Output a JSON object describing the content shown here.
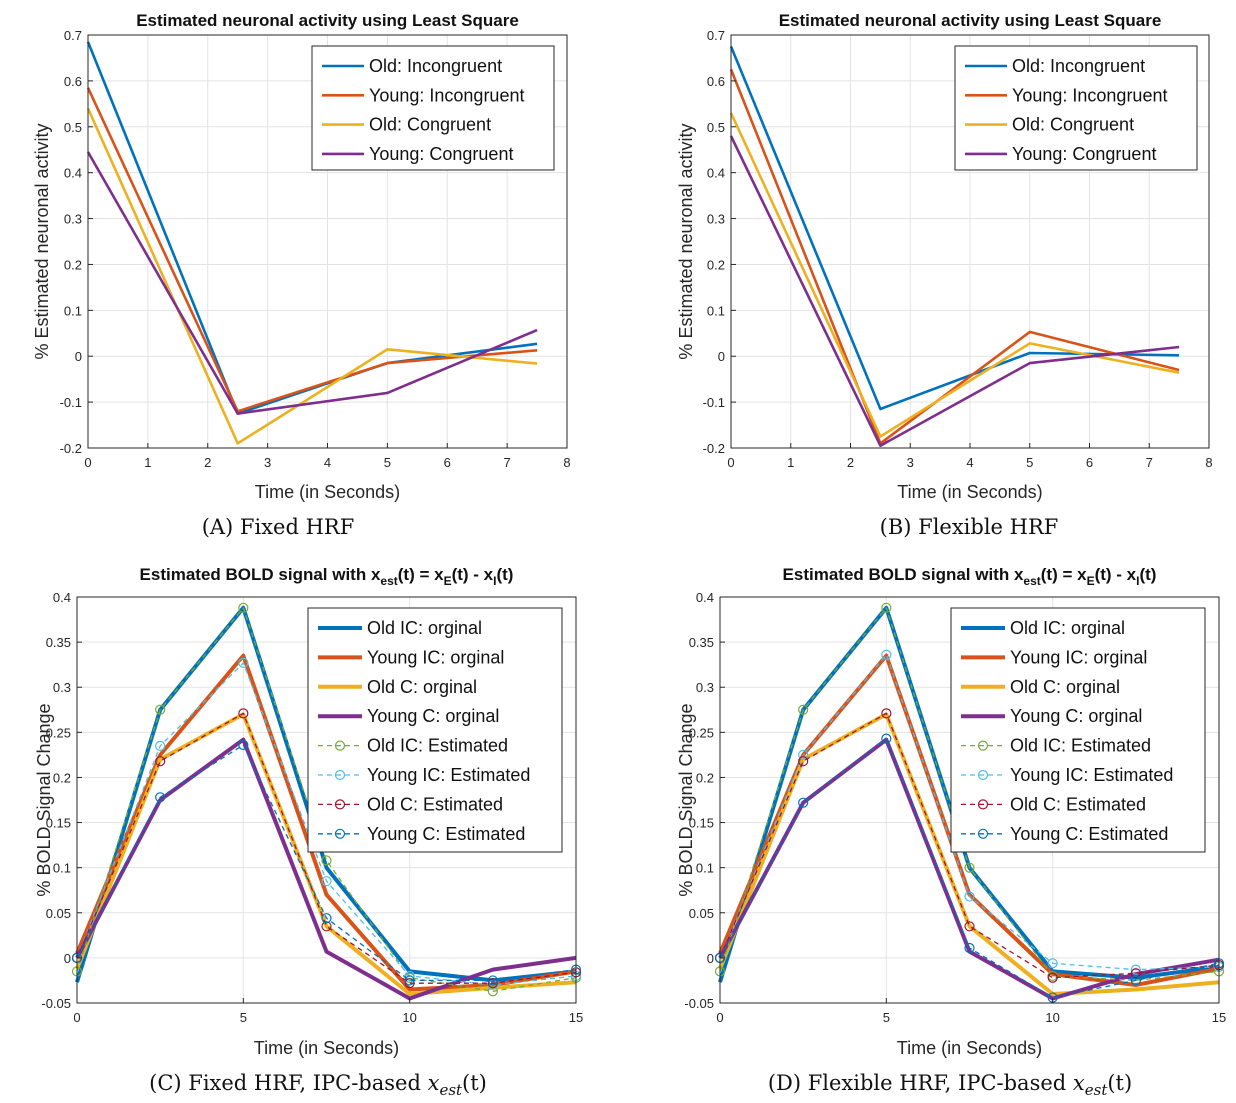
{
  "chart_data": [
    {
      "type": "line",
      "title": "Estimated neuronal activity using Least Square",
      "caption": "(A) Fixed HRF",
      "xlabel": "Time (in Seconds)",
      "ylabel": "% Estimated neuronal activity",
      "xlim": [
        0,
        8
      ],
      "ylim": [
        -0.2,
        0.7
      ],
      "xticks": [
        "0",
        "1",
        "2",
        "3",
        "4",
        "5",
        "6",
        "7",
        "8"
      ],
      "yticks": [
        "-0.2",
        "-0.1",
        "0",
        "0.1",
        "0.2",
        "0.3",
        "0.4",
        "0.5",
        "0.6",
        "0.7"
      ],
      "grid": true,
      "legend": "top-right",
      "x": [
        0,
        2.5,
        5,
        7.5
      ],
      "series": [
        {
          "name": "Old: Incongruent",
          "color": "#0072BD",
          "values": [
            0.685,
            -0.125,
            -0.015,
            0.027
          ]
        },
        {
          "name": "Young: Incongruent",
          "color": "#D95319",
          "values": [
            0.585,
            -0.12,
            -0.015,
            0.013
          ]
        },
        {
          "name": "Old: Congruent",
          "color": "#EDB120",
          "values": [
            0.54,
            -0.19,
            0.015,
            -0.016
          ]
        },
        {
          "name": "Young: Congruent",
          "color": "#7E2F8E",
          "values": [
            0.445,
            -0.125,
            -0.08,
            0.057
          ]
        }
      ]
    },
    {
      "type": "line",
      "title": "Estimated neuronal activity using Least Square",
      "caption": "(B) Flexible HRF",
      "xlabel": "Time (in Seconds)",
      "ylabel": "% Estimated neuronal activity",
      "xlim": [
        0,
        8
      ],
      "ylim": [
        -0.2,
        0.7
      ],
      "xticks": [
        "0",
        "1",
        "2",
        "3",
        "4",
        "5",
        "6",
        "7",
        "8"
      ],
      "yticks": [
        "-0.2",
        "-0.1",
        "0",
        "0.1",
        "0.2",
        "0.3",
        "0.4",
        "0.5",
        "0.6",
        "0.7"
      ],
      "grid": true,
      "legend": "top-right",
      "x": [
        0,
        2.5,
        5,
        7.5
      ],
      "series": [
        {
          "name": "Old: Incongruent",
          "color": "#0072BD",
          "values": [
            0.675,
            -0.115,
            0.007,
            0.002
          ]
        },
        {
          "name": "Young: Incongruent",
          "color": "#D95319",
          "values": [
            0.625,
            -0.19,
            0.053,
            -0.03
          ]
        },
        {
          "name": "Old: Congruent",
          "color": "#EDB120",
          "values": [
            0.53,
            -0.175,
            0.028,
            -0.036
          ]
        },
        {
          "name": "Young: Congruent",
          "color": "#7E2F8E",
          "values": [
            0.48,
            -0.195,
            -0.015,
            0.02
          ]
        }
      ]
    },
    {
      "type": "line",
      "title": "Estimated BOLD signal with x",
      "title_parts": {
        "sub_est": "est",
        "mid": "(t) = x",
        "sub_e": "E",
        "mid2": "(t) - x",
        "sub_i": "I",
        "end": "(t)"
      },
      "caption": "(C) Fixed HRF, IPC-based ",
      "caption_math": "x",
      "caption_sub": "est",
      "caption_end": "(t)",
      "xlabel": "Time (in Seconds)",
      "ylabel": "% BOLD Signal Change",
      "xlim": [
        0,
        15
      ],
      "ylim": [
        -0.05,
        0.4
      ],
      "xticks": [
        "0",
        "5",
        "10",
        "15"
      ],
      "yticks": [
        "-0.05",
        "0",
        "0.05",
        "0.1",
        "0.15",
        "0.2",
        "0.25",
        "0.3",
        "0.35",
        "0.4"
      ],
      "grid": true,
      "legend": "top-right",
      "x": [
        0,
        2.5,
        5,
        7.5,
        10,
        12.5,
        15
      ],
      "series": [
        {
          "name": "Old IC: orginal",
          "color": "#0072BD",
          "style": "solid",
          "values": [
            -0.027,
            0.275,
            0.388,
            0.1,
            -0.015,
            -0.025,
            -0.015
          ]
        },
        {
          "name": "Young IC: orginal",
          "color": "#D95319",
          "style": "solid",
          "values": [
            0.005,
            0.225,
            0.335,
            0.07,
            -0.035,
            -0.03,
            -0.015
          ]
        },
        {
          "name": "Old C: orginal",
          "color": "#EDB120",
          "style": "solid",
          "values": [
            -0.012,
            0.22,
            0.27,
            0.035,
            -0.04,
            -0.033,
            -0.027
          ]
        },
        {
          "name": "Young C: orginal",
          "color": "#7E2F8E",
          "style": "solid",
          "values": [
            0.0,
            0.175,
            0.242,
            0.007,
            -0.045,
            -0.013,
            0.0
          ]
        },
        {
          "name": "Old IC: Estimated",
          "color": "#77AC30",
          "style": "dashed",
          "values": [
            -0.015,
            0.275,
            0.388,
            0.108,
            -0.022,
            -0.037,
            -0.022
          ]
        },
        {
          "name": "Young IC: Estimated",
          "color": "#4DBEEE",
          "style": "dashed",
          "values": [
            0.0,
            0.235,
            0.327,
            0.085,
            -0.02,
            -0.03,
            -0.02
          ]
        },
        {
          "name": "Old C: Estimated",
          "color": "#A2142F",
          "style": "dashed",
          "values": [
            0.0,
            0.218,
            0.271,
            0.035,
            -0.028,
            -0.028,
            -0.016
          ]
        },
        {
          "name": "Young C: Estimated",
          "color": "#0072BD",
          "style": "dashed",
          "values": [
            0.0,
            0.178,
            0.236,
            0.044,
            -0.025,
            -0.025,
            -0.013
          ]
        }
      ]
    },
    {
      "type": "line",
      "title": "Estimated BOLD signal with x",
      "title_parts": {
        "sub_est": "est",
        "mid": "(t) = x",
        "sub_e": "E",
        "mid2": "(t) - x",
        "sub_i": "I",
        "end": "(t)"
      },
      "caption": "(D) Flexible HRF, IPC-based ",
      "caption_math": "x",
      "caption_sub": "est",
      "caption_end": "(t)",
      "xlabel": "Time (in Seconds)",
      "ylabel": "% BOLD Signal Change",
      "xlim": [
        0,
        15
      ],
      "ylim": [
        -0.05,
        0.4
      ],
      "xticks": [
        "0",
        "5",
        "10",
        "15"
      ],
      "yticks": [
        "-0.05",
        "0",
        "0.05",
        "0.1",
        "0.15",
        "0.2",
        "0.25",
        "0.3",
        "0.35",
        "0.4"
      ],
      "grid": true,
      "legend": "top-right",
      "x": [
        0,
        2.5,
        5,
        7.5,
        10,
        12.5,
        15
      ],
      "series": [
        {
          "name": "Old IC: orginal",
          "color": "#0072BD",
          "style": "solid",
          "values": [
            -0.027,
            0.275,
            0.388,
            0.1,
            -0.015,
            -0.022,
            -0.01
          ]
        },
        {
          "name": "Young IC: orginal",
          "color": "#D95319",
          "style": "solid",
          "values": [
            0.005,
            0.225,
            0.335,
            0.07,
            -0.018,
            -0.03,
            -0.012
          ]
        },
        {
          "name": "Old C: orginal",
          "color": "#EDB120",
          "style": "solid",
          "values": [
            -0.012,
            0.22,
            0.27,
            0.035,
            -0.04,
            -0.035,
            -0.027
          ]
        },
        {
          "name": "Young C: orginal",
          "color": "#7E2F8E",
          "style": "solid",
          "values": [
            0.0,
            0.172,
            0.242,
            0.007,
            -0.045,
            -0.018,
            -0.002
          ]
        },
        {
          "name": "Old IC: Estimated",
          "color": "#77AC30",
          "style": "dashed",
          "values": [
            -0.015,
            0.275,
            0.388,
            0.1,
            -0.02,
            -0.025,
            -0.015
          ]
        },
        {
          "name": "Young IC: Estimated",
          "color": "#4DBEEE",
          "style": "dashed",
          "values": [
            0.0,
            0.225,
            0.336,
            0.068,
            -0.006,
            -0.013,
            -0.01
          ]
        },
        {
          "name": "Old C: Estimated",
          "color": "#A2142F",
          "style": "dashed",
          "values": [
            0.0,
            0.218,
            0.271,
            0.035,
            -0.022,
            -0.017,
            -0.008
          ]
        },
        {
          "name": "Young C: Estimated",
          "color": "#0072BD",
          "style": "dashed",
          "values": [
            0.0,
            0.172,
            0.243,
            0.011,
            -0.044,
            -0.025,
            -0.006
          ]
        }
      ]
    }
  ]
}
